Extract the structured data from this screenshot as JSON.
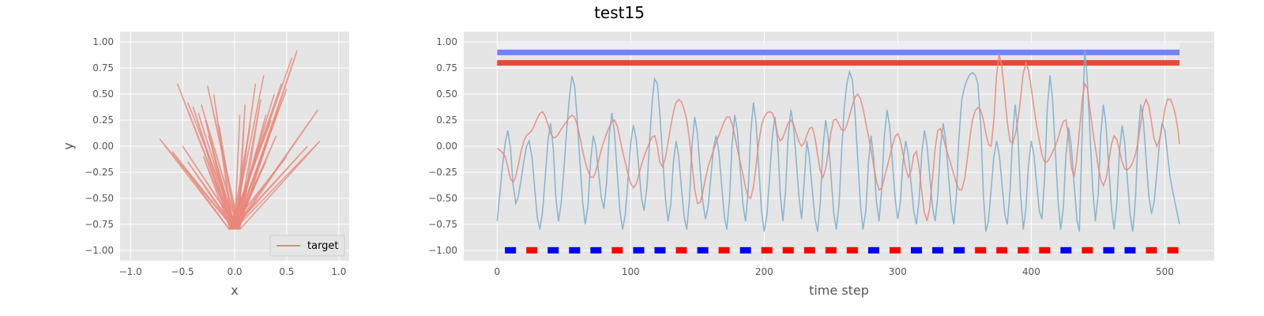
{
  "figure": {
    "title": "test15"
  },
  "colors": {
    "panel_bg": "#e5e5e5",
    "grid": "#ffffff",
    "target": "#e8877a",
    "signal": "#7aaecc",
    "band_light": "#eeeef4",
    "band_blue": "#6a7ff0",
    "band_red": "#dd4433",
    "marker_red": "#ff0000",
    "marker_blue": "#0000ff"
  },
  "chart_data": [
    {
      "type": "line",
      "subtype": "xy-trajectory",
      "xlabel": "x",
      "ylabel": "y",
      "xlim": [
        -1.1,
        1.1
      ],
      "ylim": [
        -1.1,
        1.1
      ],
      "xticks": [
        -1.0,
        -0.5,
        0.0,
        0.5,
        1.0
      ],
      "xtick_labels": [
        "−1.0",
        "−0.5",
        "0.0",
        "0.5",
        "1.0"
      ],
      "yticks": [
        -1.0,
        -0.75,
        -0.5,
        -0.25,
        0.0,
        0.25,
        0.5,
        0.75,
        1.0
      ],
      "ytick_labels": [
        "−1.00",
        "−0.75",
        "−0.50",
        "−0.25",
        "0.00",
        "0.25",
        "0.50",
        "0.75",
        "1.00"
      ],
      "grid": true,
      "legend": {
        "placement": "lower right",
        "entries": [
          "target"
        ]
      },
      "series": [
        {
          "name": "target",
          "tips": [
            [
              -0.72,
              0.07
            ],
            [
              -0.55,
              0.6
            ],
            [
              -0.45,
              0.42
            ],
            [
              -0.4,
              0.38
            ],
            [
              -0.35,
              0.32
            ],
            [
              -0.32,
              0.4
            ],
            [
              -0.28,
              0.25
            ],
            [
              -0.25,
              0.1
            ],
            [
              -0.26,
              0.58
            ],
            [
              -0.2,
              0.5
            ],
            [
              -0.15,
              0.2
            ],
            [
              -0.6,
              -0.05
            ],
            [
              -0.45,
              -0.15
            ],
            [
              -0.5,
              0.0
            ],
            [
              -0.3,
              -0.1
            ],
            [
              0.05,
              0.3
            ],
            [
              0.1,
              0.4
            ],
            [
              0.15,
              0.2
            ],
            [
              0.2,
              0.6
            ],
            [
              0.25,
              0.45
            ],
            [
              0.28,
              0.68
            ],
            [
              0.3,
              0.3
            ],
            [
              0.35,
              0.25
            ],
            [
              0.38,
              0.5
            ],
            [
              0.42,
              0.35
            ],
            [
              0.45,
              0.6
            ],
            [
              0.5,
              0.55
            ],
            [
              0.6,
              0.92
            ],
            [
              0.55,
              0.85
            ],
            [
              0.8,
              0.35
            ],
            [
              0.82,
              0.05
            ],
            [
              0.7,
              0.0
            ],
            [
              0.4,
              0.1
            ],
            [
              0.5,
              -0.1
            ],
            [
              0.3,
              -0.15
            ]
          ],
          "apex": [
            0.0,
            -0.82
          ]
        }
      ]
    },
    {
      "type": "line",
      "xlabel": "time step",
      "ylabel": "",
      "xlim": [
        -25,
        537
      ],
      "ylim": [
        -1.1,
        1.1
      ],
      "xticks": [
        0,
        100,
        200,
        300,
        400,
        500
      ],
      "xtick_labels": [
        "0",
        "100",
        "200",
        "300",
        "400",
        "500"
      ],
      "yticks": [
        -1.0,
        -0.75,
        -0.5,
        -0.25,
        0.0,
        0.25,
        0.5,
        0.75,
        1.0
      ],
      "ytick_labels": [
        "−1.00",
        "−0.75",
        "−0.50",
        "−0.25",
        "0.00",
        "0.25",
        "0.50",
        "0.75",
        "1.00"
      ],
      "grid": true,
      "bands": [
        {
          "y": 0.96,
          "x_range": [
            0,
            511
          ],
          "color": "band_light"
        },
        {
          "y": 0.9,
          "x_range": [
            0,
            511
          ],
          "color": "band_blue"
        },
        {
          "y": 0.8,
          "x_range": [
            0,
            511
          ],
          "color": "band_red"
        }
      ],
      "markers": {
        "y": -1.0,
        "x": [
          10,
          26,
          42,
          58,
          74,
          90,
          106,
          122,
          138,
          154,
          170,
          186,
          202,
          218,
          234,
          250,
          266,
          282,
          298,
          314,
          330,
          346,
          362,
          378,
          394,
          410,
          426,
          442,
          458,
          474,
          490,
          506
        ],
        "colors": [
          "marker_blue",
          "marker_red",
          "marker_blue",
          "marker_blue",
          "marker_blue",
          "marker_red",
          "marker_blue",
          "marker_blue",
          "marker_red",
          "marker_blue",
          "marker_red",
          "marker_blue",
          "marker_red",
          "marker_red",
          "marker_red",
          "marker_red",
          "marker_red",
          "marker_blue",
          "marker_red",
          "marker_blue",
          "marker_blue",
          "marker_blue",
          "marker_red",
          "marker_red",
          "marker_red",
          "marker_red",
          "marker_blue",
          "marker_red",
          "marker_blue",
          "marker_blue",
          "marker_red",
          "marker_red"
        ]
      },
      "series": [
        {
          "name": "",
          "color": "signal",
          "peaks": [
            [
              0,
              -0.72
            ],
            [
              8,
              0.15
            ],
            [
              14,
              -0.55
            ],
            [
              24,
              0.05
            ],
            [
              32,
              -0.8
            ],
            [
              40,
              0.22
            ],
            [
              46,
              -0.72
            ],
            [
              54,
              0.45
            ],
            [
              58,
              0.58
            ],
            [
              66,
              -0.75
            ],
            [
              72,
              0.1
            ],
            [
              80,
              -0.6
            ],
            [
              86,
              0.32
            ],
            [
              94,
              -0.8
            ],
            [
              102,
              0.2
            ],
            [
              110,
              -0.62
            ],
            [
              116,
              0.4
            ],
            [
              120,
              0.6
            ],
            [
              128,
              -0.72
            ],
            [
              134,
              0.05
            ],
            [
              142,
              -0.8
            ],
            [
              148,
              0.28
            ],
            [
              156,
              -0.7
            ],
            [
              164,
              0.1
            ],
            [
              172,
              -0.8
            ],
            [
              178,
              0.3
            ],
            [
              186,
              -0.72
            ],
            [
              192,
              0.42
            ],
            [
              200,
              -0.82
            ],
            [
              208,
              0.28
            ],
            [
              214,
              -0.72
            ],
            [
              220,
              0.35
            ],
            [
              228,
              -0.7
            ],
            [
              232,
              0.05
            ],
            [
              240,
              -0.82
            ],
            [
              246,
              0.25
            ],
            [
              254,
              -0.8
            ],
            [
              260,
              0.38
            ],
            [
              266,
              0.64
            ],
            [
              274,
              -0.8
            ],
            [
              280,
              0.1
            ],
            [
              286,
              -0.72
            ],
            [
              292,
              0.35
            ],
            [
              300,
              -0.7
            ],
            [
              306,
              0.05
            ],
            [
              314,
              -0.75
            ],
            [
              320,
              0.15
            ],
            [
              328,
              -0.72
            ],
            [
              334,
              0.22
            ],
            [
              342,
              -0.75
            ],
            [
              348,
              0.45
            ],
            [
              360,
              0.6
            ],
            [
              366,
              -0.82
            ],
            [
              374,
              0.05
            ],
            [
              382,
              -0.75
            ],
            [
              388,
              0.4
            ],
            [
              394,
              -0.8
            ],
            [
              400,
              0.05
            ],
            [
              408,
              -0.7
            ],
            [
              414,
              0.68
            ],
            [
              422,
              -0.8
            ],
            [
              428,
              0.18
            ],
            [
              436,
              -0.82
            ],
            [
              440,
              0.92
            ],
            [
              448,
              -0.72
            ],
            [
              454,
              0.4
            ],
            [
              462,
              -0.8
            ],
            [
              468,
              0.2
            ],
            [
              476,
              -0.82
            ],
            [
              482,
              0.4
            ],
            [
              490,
              -0.65
            ],
            [
              498,
              0.22
            ],
            [
              504,
              -0.3
            ],
            [
              511,
              -0.75
            ]
          ]
        },
        {
          "name": "",
          "color": "target",
          "peaks": [
            [
              0,
              -0.02
            ],
            [
              6,
              -0.1
            ],
            [
              12,
              -0.35
            ],
            [
              20,
              0.05
            ],
            [
              26,
              0.15
            ],
            [
              34,
              0.33
            ],
            [
              42,
              0.08
            ],
            [
              50,
              0.2
            ],
            [
              58,
              0.28
            ],
            [
              66,
              -0.15
            ],
            [
              72,
              -0.3
            ],
            [
              80,
              0.05
            ],
            [
              88,
              0.25
            ],
            [
              94,
              -0.05
            ],
            [
              102,
              -0.4
            ],
            [
              110,
              -0.1
            ],
            [
              118,
              0.1
            ],
            [
              124,
              -0.2
            ],
            [
              134,
              0.42
            ],
            [
              142,
              0.25
            ],
            [
              150,
              -0.55
            ],
            [
              158,
              -0.2
            ],
            [
              166,
              0.1
            ],
            [
              174,
              0.28
            ],
            [
              182,
              -0.15
            ],
            [
              190,
              -0.5
            ],
            [
              198,
              0.2
            ],
            [
              206,
              0.32
            ],
            [
              212,
              0.05
            ],
            [
              220,
              0.25
            ],
            [
              228,
              0.0
            ],
            [
              236,
              0.18
            ],
            [
              244,
              -0.3
            ],
            [
              252,
              0.25
            ],
            [
              260,
              0.15
            ],
            [
              270,
              0.5
            ],
            [
              278,
              0.1
            ],
            [
              286,
              -0.42
            ],
            [
              292,
              -0.2
            ],
            [
              300,
              0.12
            ],
            [
              308,
              -0.3
            ],
            [
              314,
              -0.05
            ],
            [
              322,
              -0.72
            ],
            [
              330,
              0.15
            ],
            [
              338,
              -0.1
            ],
            [
              348,
              -0.42
            ],
            [
              356,
              0.25
            ],
            [
              362,
              0.35
            ],
            [
              370,
              0.0
            ],
            [
              376,
              0.88
            ],
            [
              384,
              0.05
            ],
            [
              390,
              0.25
            ],
            [
              396,
              0.8
            ],
            [
              404,
              0.2
            ],
            [
              410,
              -0.15
            ],
            [
              418,
              0.0
            ],
            [
              426,
              0.25
            ],
            [
              432,
              -0.3
            ],
            [
              440,
              0.6
            ],
            [
              446,
              0.15
            ],
            [
              454,
              -0.38
            ],
            [
              462,
              0.1
            ],
            [
              470,
              -0.22
            ],
            [
              478,
              -0.08
            ],
            [
              486,
              0.45
            ],
            [
              494,
              0.0
            ],
            [
              502,
              0.45
            ],
            [
              508,
              0.3
            ],
            [
              511,
              0.02
            ]
          ]
        }
      ]
    }
  ]
}
